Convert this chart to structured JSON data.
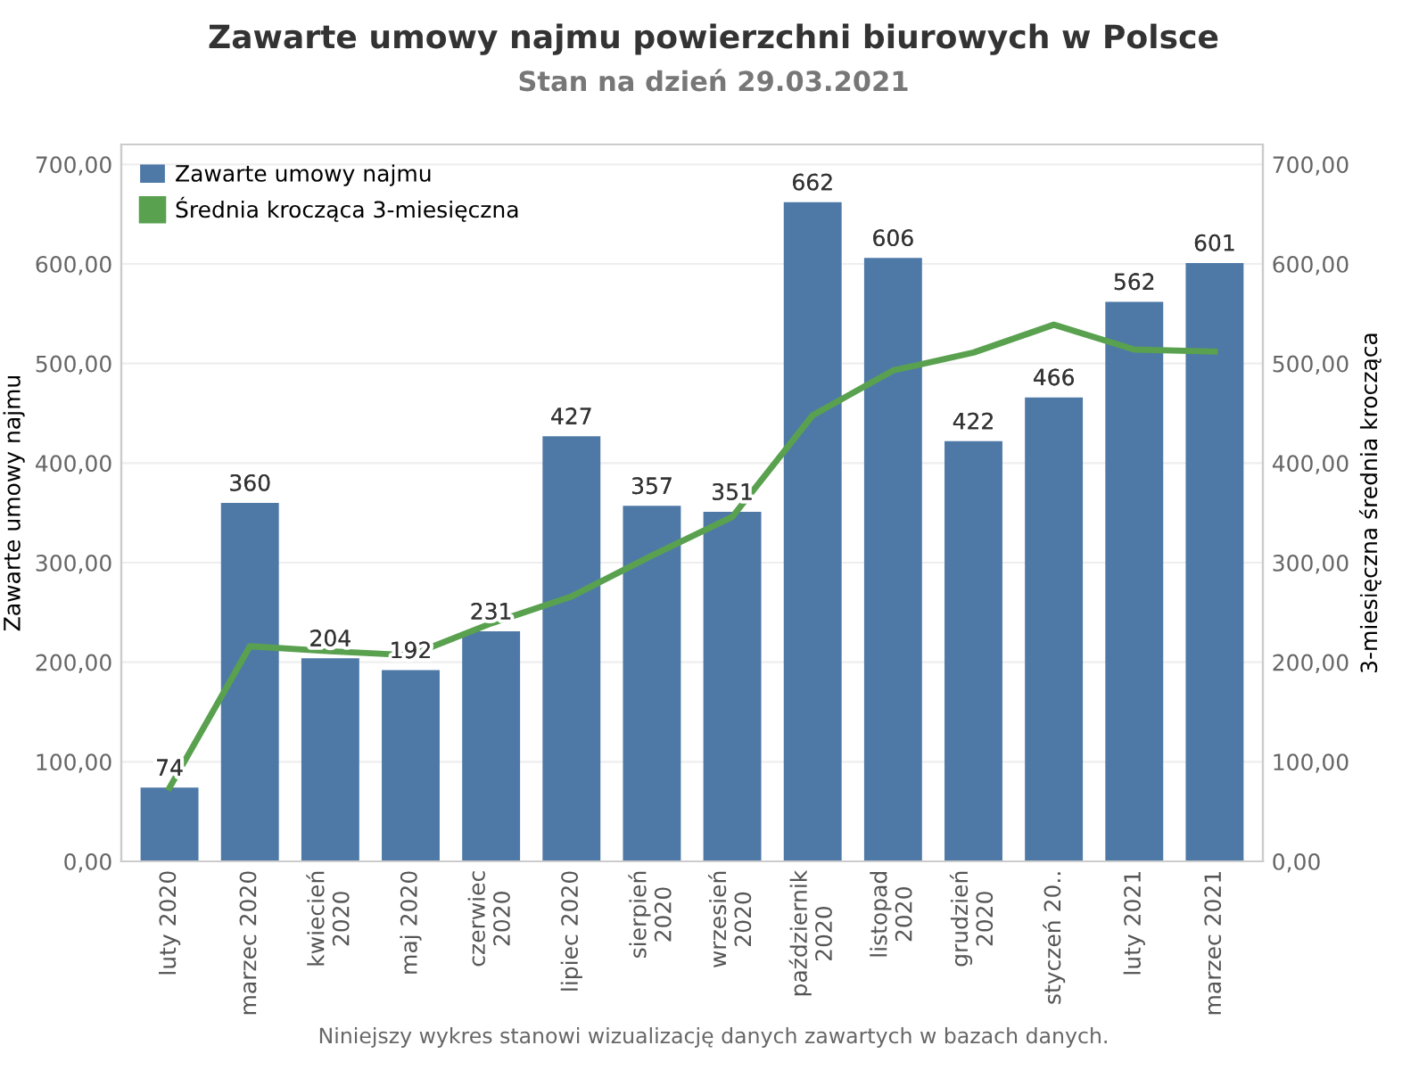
{
  "chart_data": {
    "type": "bar",
    "title": "Zawarte umowy najmu powierzchni biurowych w Polsce",
    "subtitle": "Stan na dzień 29.03.2021",
    "ylabel": "Zawarte umowy najmu",
    "y2label": "3-miesięczna średnia krocząca",
    "categories": [
      "luty 2020",
      "marzec 2020",
      "kwiecień\n2020",
      "maj 2020",
      "czerwiec\n2020",
      "lipiec 2020",
      "sierpień\n2020",
      "wrzesień\n2020",
      "październik\n2020",
      "listopad\n2020",
      "grudzień\n2020",
      "styczeń 20..",
      "luty 2021",
      "marzec 2021"
    ],
    "series": [
      {
        "name": "Zawarte umowy najmu",
        "color": "#4e79a7",
        "values": [
          74,
          360,
          204,
          192,
          231,
          427,
          357,
          351,
          662,
          606,
          422,
          466,
          562,
          601
        ],
        "value_labels": [
          "74",
          "360",
          "204",
          "192",
          "231",
          "427",
          "357",
          "351",
          "662",
          "606",
          "422",
          "466",
          "562",
          "601"
        ]
      },
      {
        "name": "Średnia krocząca 3-miesięczna",
        "type": "line",
        "axis": "y2",
        "color": "#59a14f",
        "values": [
          74,
          216,
          211,
          207,
          239,
          266,
          307,
          346,
          448,
          493,
          511,
          539,
          514,
          512
        ]
      }
    ],
    "ylim": [
      0,
      720
    ],
    "yticks": [
      {
        "value": 0,
        "label": "0,00"
      },
      {
        "value": 100,
        "label": "100,00"
      },
      {
        "value": 200,
        "label": "200,00"
      },
      {
        "value": 300,
        "label": "300,00"
      },
      {
        "value": 400,
        "label": "400,00"
      },
      {
        "value": 500,
        "label": "500,00"
      },
      {
        "value": 600,
        "label": "600,00"
      },
      {
        "value": 700,
        "label": "700,00"
      }
    ],
    "y2lim": [
      0,
      720
    ],
    "y2ticks": [
      {
        "value": 0,
        "label": "0,00"
      },
      {
        "value": 100,
        "label": "100,00"
      },
      {
        "value": 200,
        "label": "200,00"
      },
      {
        "value": 300,
        "label": "300,00"
      },
      {
        "value": 400,
        "label": "400,00"
      },
      {
        "value": 500,
        "label": "500,00"
      },
      {
        "value": 600,
        "label": "600,00"
      },
      {
        "value": 700,
        "label": "700,00"
      }
    ],
    "grid": "y",
    "legend": "top left",
    "annotations": [
      "Niniejszy wykres stanowi wizualizację danych zawartych w bazach danych."
    ]
  }
}
